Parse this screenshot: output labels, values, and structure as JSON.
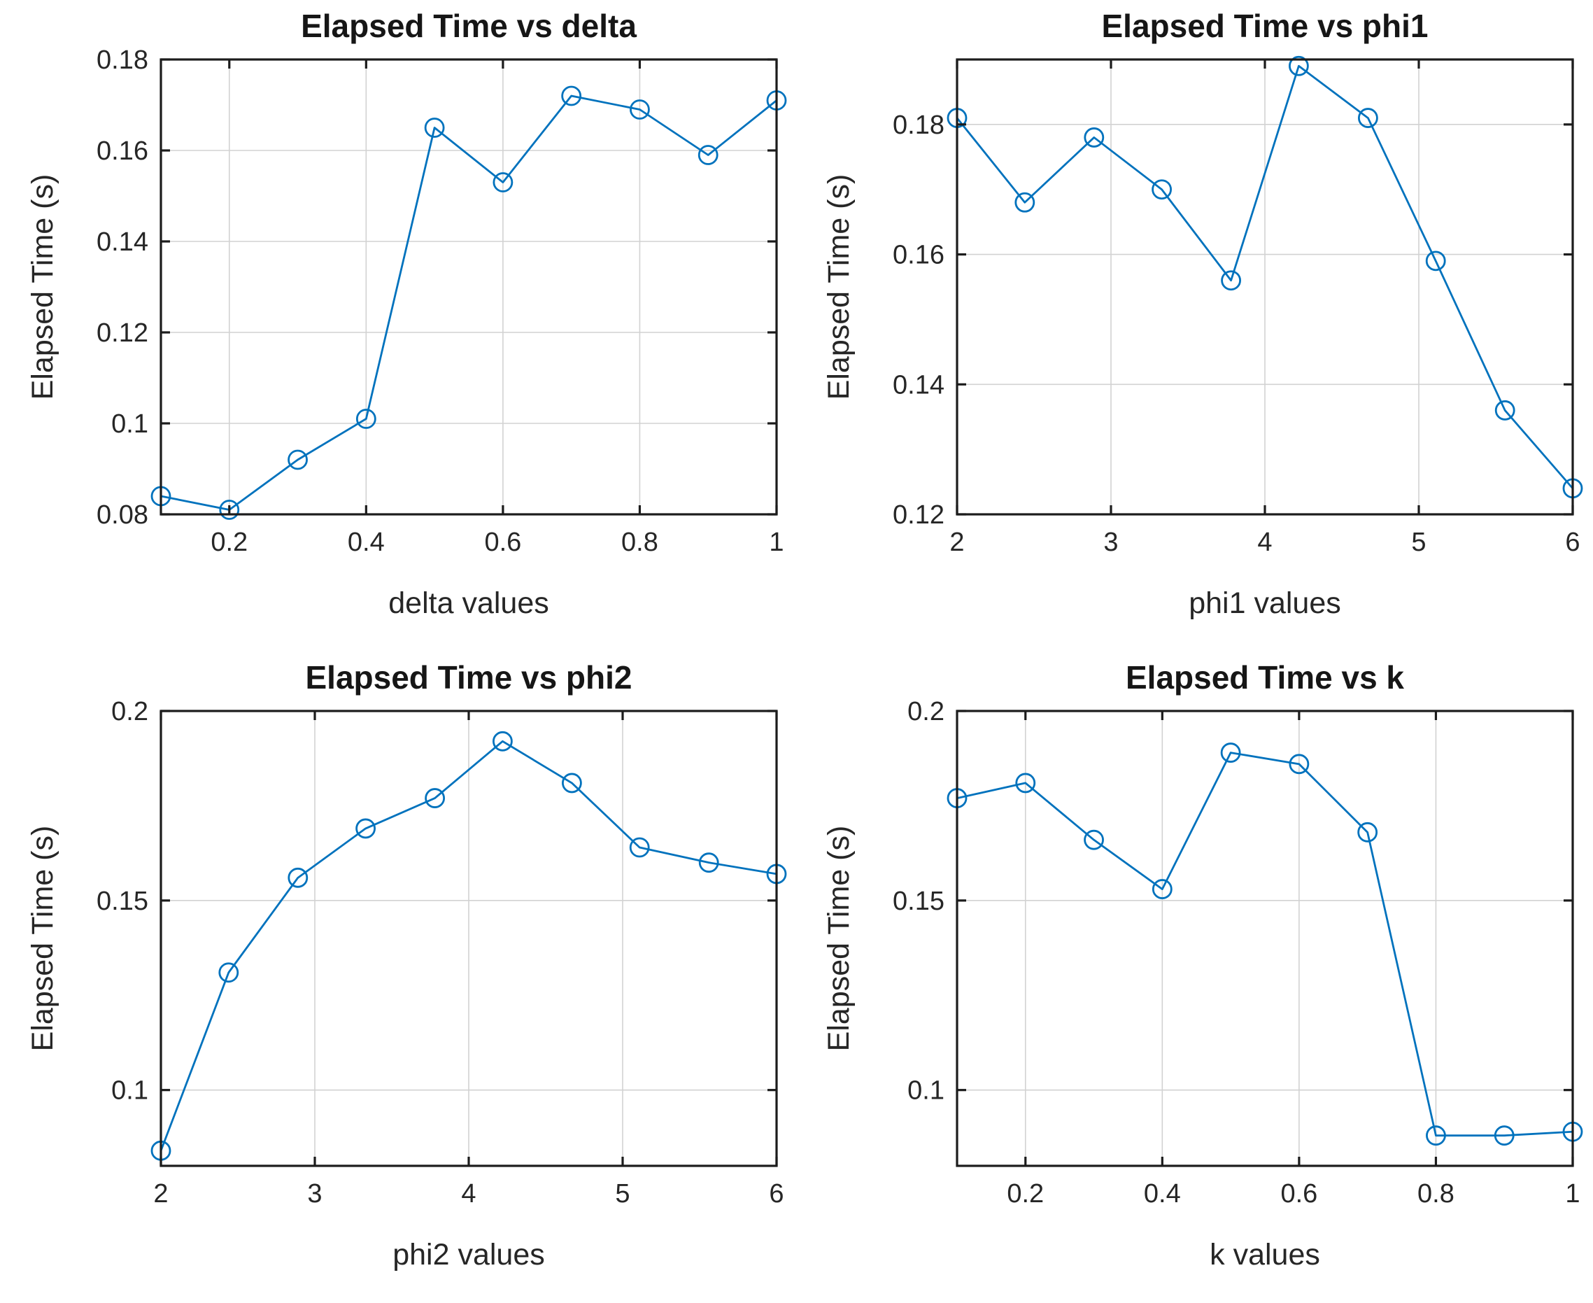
{
  "figure": {
    "background": "#ffffff",
    "subplot_layout": "2x2"
  },
  "style": {
    "line_color": "#0072BD",
    "marker": "circle-open",
    "grid_color": "#d2d2d2",
    "axis_color": "#1c1c1c",
    "tick_label_color": "#262626",
    "grid": true
  },
  "chart_data": [
    {
      "type": "line",
      "title": "Elapsed Time vs delta",
      "xlabel": "delta values",
      "ylabel": "Elapsed Time (s)",
      "x": [
        0.1,
        0.2,
        0.3,
        0.4,
        0.5,
        0.6,
        0.7,
        0.8,
        0.9,
        1.0
      ],
      "y": [
        0.084,
        0.081,
        0.092,
        0.101,
        0.165,
        0.153,
        0.172,
        0.169,
        0.159,
        0.171
      ],
      "xlim": [
        0.1,
        1
      ],
      "ylim": [
        0.08,
        0.18
      ],
      "xticks": [
        0.2,
        0.4,
        0.6,
        0.8,
        1
      ],
      "xtick_labels": [
        "0.2",
        "0.4",
        "0.6",
        "0.8",
        "1"
      ],
      "yticks": [
        0.08,
        0.1,
        0.12,
        0.14,
        0.16,
        0.18
      ],
      "ytick_labels": [
        "0.08",
        "0.1",
        "0.12",
        "0.14",
        "0.16",
        "0.18"
      ],
      "grid": true,
      "legend": false
    },
    {
      "type": "line",
      "title": "Elapsed Time vs phi1",
      "xlabel": "phi1 values",
      "ylabel": "Elapsed Time (s)",
      "x": [
        2,
        2.44,
        2.89,
        3.33,
        3.78,
        4.22,
        4.67,
        5.11,
        5.56,
        6
      ],
      "y": [
        0.181,
        0.168,
        0.178,
        0.17,
        0.156,
        0.189,
        0.181,
        0.159,
        0.136,
        0.124
      ],
      "xlim": [
        2,
        6
      ],
      "ylim": [
        0.12,
        0.19
      ],
      "xticks": [
        2,
        3,
        4,
        5,
        6
      ],
      "xtick_labels": [
        "2",
        "3",
        "4",
        "5",
        "6"
      ],
      "yticks": [
        0.12,
        0.14,
        0.16,
        0.18
      ],
      "ytick_labels": [
        "0.12",
        "0.14",
        "0.16",
        "0.18"
      ],
      "grid": true,
      "legend": false
    },
    {
      "type": "line",
      "title": "Elapsed Time vs phi2",
      "xlabel": "phi2 values",
      "ylabel": "Elapsed Time (s)",
      "x": [
        2,
        2.44,
        2.89,
        3.33,
        3.78,
        4.22,
        4.67,
        5.11,
        5.56,
        6
      ],
      "y": [
        0.084,
        0.131,
        0.156,
        0.169,
        0.177,
        0.192,
        0.181,
        0.164,
        0.16,
        0.157
      ],
      "xlim": [
        2,
        6
      ],
      "ylim": [
        0.08,
        0.2
      ],
      "xticks": [
        2,
        3,
        4,
        5,
        6
      ],
      "xtick_labels": [
        "2",
        "3",
        "4",
        "5",
        "6"
      ],
      "yticks": [
        0.1,
        0.15,
        0.2
      ],
      "ytick_labels": [
        "0.1",
        "0.15",
        "0.2"
      ],
      "grid": true,
      "legend": false
    },
    {
      "type": "line",
      "title": "Elapsed Time vs k",
      "xlabel": "k values",
      "ylabel": "Elapsed Time (s)",
      "x": [
        0.1,
        0.2,
        0.3,
        0.4,
        0.5,
        0.6,
        0.7,
        0.8,
        0.9,
        1.0
      ],
      "y": [
        0.177,
        0.181,
        0.166,
        0.153,
        0.189,
        0.186,
        0.168,
        0.088,
        0.088,
        0.089
      ],
      "xlim": [
        0.1,
        1
      ],
      "ylim": [
        0.08,
        0.2
      ],
      "xticks": [
        0.2,
        0.4,
        0.6,
        0.8,
        1
      ],
      "xtick_labels": [
        "0.2",
        "0.4",
        "0.6",
        "0.8",
        "1"
      ],
      "yticks": [
        0.1,
        0.15,
        0.2
      ],
      "ytick_labels": [
        "0.1",
        "0.15",
        "0.2"
      ],
      "grid": true,
      "legend": false
    }
  ]
}
